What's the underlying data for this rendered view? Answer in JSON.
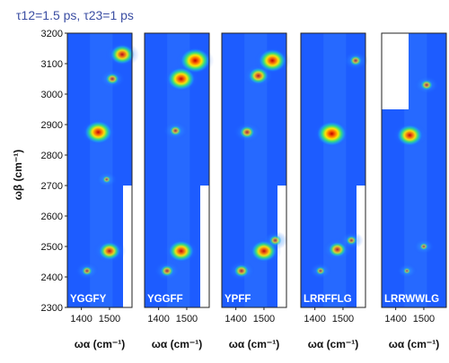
{
  "chart_data": {
    "type": "heatmap",
    "title": "τ12=1.5 ps, τ23=1 ps",
    "ylabel": "ωβ (cm⁻¹)",
    "xlabel": "ωα (cm⁻¹)",
    "ylim": [
      2300,
      3200
    ],
    "yticks": [
      2300,
      2400,
      2500,
      2600,
      2700,
      2800,
      2900,
      3000,
      3100,
      3200
    ],
    "xlim": [
      1350,
      1580
    ],
    "xticks": [
      1400,
      1500
    ],
    "panels": [
      {
        "label": "YGGFY",
        "peaks": [
          {
            "x": 1545,
            "y": 3130,
            "intensity": 0.85
          },
          {
            "x": 1510,
            "y": 3050,
            "intensity": 0.55
          },
          {
            "x": 1460,
            "y": 2875,
            "intensity": 0.95
          },
          {
            "x": 1490,
            "y": 2720,
            "intensity": 0.35
          },
          {
            "x": 1500,
            "y": 2485,
            "intensity": 0.8
          },
          {
            "x": 1420,
            "y": 2420,
            "intensity": 0.45
          }
        ]
      },
      {
        "label": "YGGFF",
        "peaks": [
          {
            "x": 1530,
            "y": 3110,
            "intensity": 1.0
          },
          {
            "x": 1480,
            "y": 3050,
            "intensity": 0.95
          },
          {
            "x": 1460,
            "y": 2880,
            "intensity": 0.5
          },
          {
            "x": 1480,
            "y": 2485,
            "intensity": 0.9
          },
          {
            "x": 1430,
            "y": 2420,
            "intensity": 0.55
          }
        ]
      },
      {
        "label": "YPFF",
        "peaks": [
          {
            "x": 1530,
            "y": 3110,
            "intensity": 0.95
          },
          {
            "x": 1480,
            "y": 3060,
            "intensity": 0.75
          },
          {
            "x": 1440,
            "y": 2875,
            "intensity": 0.6
          },
          {
            "x": 1500,
            "y": 2485,
            "intensity": 0.9
          },
          {
            "x": 1540,
            "y": 2520,
            "intensity": 0.5
          },
          {
            "x": 1420,
            "y": 2420,
            "intensity": 0.6
          }
        ]
      },
      {
        "label": "LRRFFLG",
        "peaks": [
          {
            "x": 1545,
            "y": 3110,
            "intensity": 0.5
          },
          {
            "x": 1460,
            "y": 2870,
            "intensity": 1.0
          },
          {
            "x": 1480,
            "y": 2490,
            "intensity": 0.7
          },
          {
            "x": 1530,
            "y": 2520,
            "intensity": 0.45
          },
          {
            "x": 1420,
            "y": 2420,
            "intensity": 0.4
          }
        ]
      },
      {
        "label": "LRRWWLG",
        "peaks": [
          {
            "x": 1510,
            "y": 3030,
            "intensity": 0.5
          },
          {
            "x": 1450,
            "y": 2865,
            "intensity": 0.9
          },
          {
            "x": 1500,
            "y": 2500,
            "intensity": 0.35
          },
          {
            "x": 1440,
            "y": 2420,
            "intensity": 0.3
          }
        ]
      }
    ]
  }
}
